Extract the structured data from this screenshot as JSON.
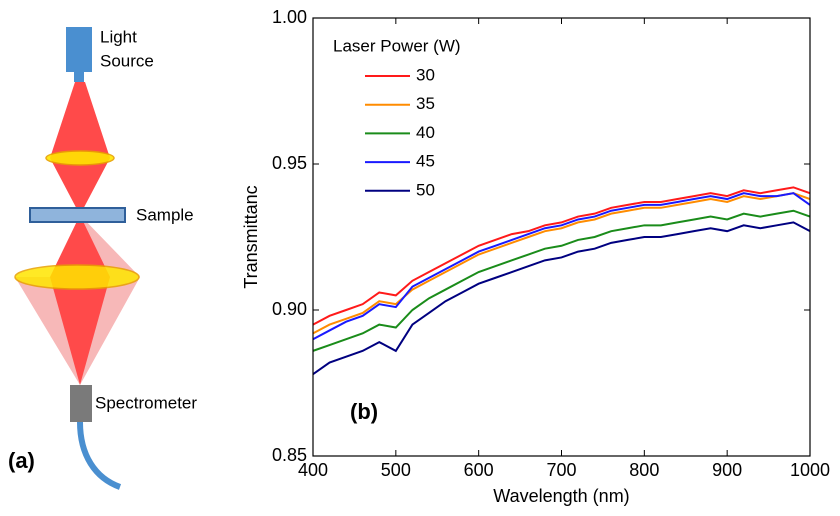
{
  "diagram": {
    "light_source_lines": [
      "Light",
      "Source"
    ],
    "sample": "Sample",
    "spectrometer": "Spectrometer",
    "panel_label": "(a)"
  },
  "chart_data": {
    "type": "line",
    "y_label": "Transmittanc",
    "x_label": "Wavelength (nm)",
    "legend_title": "Laser Power (W)",
    "annotation": "(b)",
    "x": [
      400,
      420,
      440,
      460,
      480,
      500,
      520,
      540,
      560,
      580,
      600,
      620,
      640,
      660,
      680,
      700,
      720,
      740,
      760,
      780,
      800,
      820,
      840,
      860,
      880,
      900,
      920,
      940,
      960,
      980,
      1000
    ],
    "series": [
      {
        "name": "30",
        "color": "#ff1a1a",
        "values": [
          0.895,
          0.898,
          0.9,
          0.902,
          0.906,
          0.905,
          0.91,
          0.913,
          0.916,
          0.919,
          0.922,
          0.924,
          0.926,
          0.927,
          0.929,
          0.93,
          0.932,
          0.933,
          0.935,
          0.936,
          0.937,
          0.937,
          0.938,
          0.939,
          0.94,
          0.939,
          0.941,
          0.94,
          0.941,
          0.942,
          0.94
        ]
      },
      {
        "name": "35",
        "color": "#ff8c00",
        "values": [
          0.892,
          0.895,
          0.897,
          0.899,
          0.903,
          0.902,
          0.907,
          0.91,
          0.913,
          0.916,
          0.919,
          0.921,
          0.923,
          0.925,
          0.927,
          0.928,
          0.93,
          0.931,
          0.933,
          0.934,
          0.935,
          0.935,
          0.936,
          0.937,
          0.938,
          0.937,
          0.939,
          0.938,
          0.939,
          0.94,
          0.938
        ]
      },
      {
        "name": "40",
        "color": "#1a8c1a",
        "values": [
          0.886,
          0.888,
          0.89,
          0.892,
          0.895,
          0.894,
          0.9,
          0.904,
          0.907,
          0.91,
          0.913,
          0.915,
          0.917,
          0.919,
          0.921,
          0.922,
          0.924,
          0.925,
          0.927,
          0.928,
          0.929,
          0.929,
          0.93,
          0.931,
          0.932,
          0.931,
          0.933,
          0.932,
          0.933,
          0.934,
          0.932
        ]
      },
      {
        "name": "45",
        "color": "#1a1aff",
        "values": [
          0.89,
          0.893,
          0.896,
          0.898,
          0.902,
          0.901,
          0.908,
          0.911,
          0.914,
          0.917,
          0.92,
          0.922,
          0.924,
          0.926,
          0.928,
          0.929,
          0.931,
          0.932,
          0.934,
          0.935,
          0.936,
          0.936,
          0.937,
          0.938,
          0.939,
          0.938,
          0.94,
          0.939,
          0.939,
          0.94,
          0.936
        ]
      },
      {
        "name": "50",
        "color": "#000080",
        "values": [
          0.878,
          0.882,
          0.884,
          0.886,
          0.889,
          0.886,
          0.895,
          0.899,
          0.903,
          0.906,
          0.909,
          0.911,
          0.913,
          0.915,
          0.917,
          0.918,
          0.92,
          0.921,
          0.923,
          0.924,
          0.925,
          0.925,
          0.926,
          0.927,
          0.928,
          0.927,
          0.929,
          0.928,
          0.929,
          0.93,
          0.927
        ]
      }
    ],
    "xlim": [
      400,
      1000
    ],
    "xticks": [
      400,
      500,
      600,
      700,
      800,
      900,
      1000
    ],
    "ylim": [
      0.85,
      1.0
    ],
    "yticks": [
      0.85,
      {
        "value": 0.9,
        "label": "0.90"
      },
      0.95,
      {
        "value": 1.0,
        "label": "1.00"
      }
    ],
    "legend": "upper left"
  }
}
